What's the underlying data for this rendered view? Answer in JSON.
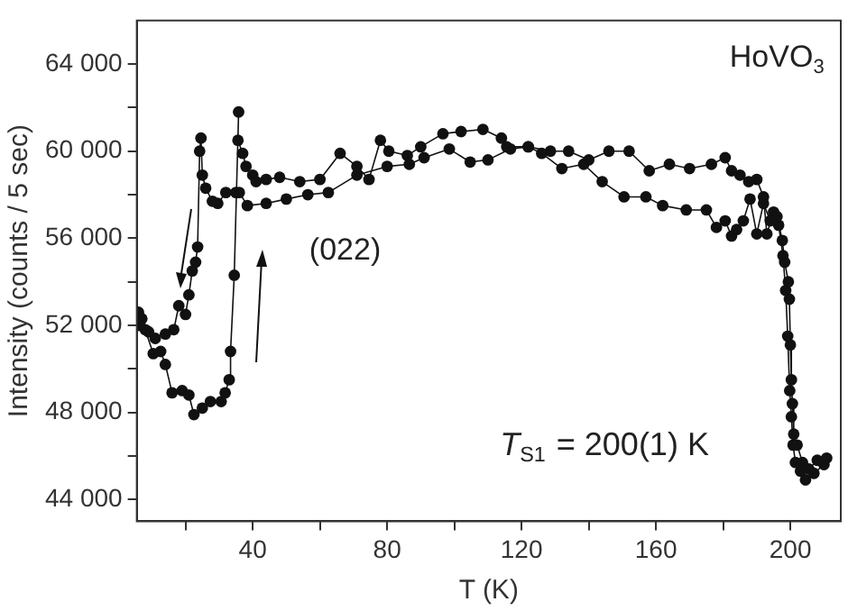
{
  "chart_data": {
    "type": "line",
    "xlabel": "T (K)",
    "ylabel": "Intensity (counts / 5 sec)",
    "annotations": [
      "HoVO$_{3}$",
      "(022)",
      "T$_{S1}$ = 200(1) K"
    ],
    "xlim": [
      5.5,
      215
    ],
    "ylim": [
      43000,
      66000
    ],
    "xticks": [
      {
        "value": 20,
        "label": null
      },
      40,
      {
        "value": 60,
        "label": null
      },
      80,
      {
        "value": 100,
        "label": null
      },
      120,
      {
        "value": 140,
        "label": null
      },
      160,
      {
        "value": 180,
        "label": null
      },
      200
    ],
    "yticks": [
      {
        "value": 44000,
        "label": "44 000"
      },
      {
        "value": 46000,
        "label": null
      },
      {
        "value": 48000,
        "label": "48 000"
      },
      {
        "value": 50000,
        "label": null
      },
      {
        "value": 52000,
        "label": "52 000"
      },
      {
        "value": 54000,
        "label": null
      },
      {
        "value": 56000,
        "label": "56 000"
      },
      {
        "value": 58000,
        "label": null
      },
      {
        "value": 60000,
        "label": "60 000"
      },
      {
        "value": 62000,
        "label": null
      },
      {
        "value": 64000,
        "label": "64 000"
      }
    ],
    "grid": false,
    "legend": false,
    "marker": "circle",
    "line_style": "solid",
    "series": [
      {
        "color": "#111111",
        "x": [
          6,
          8,
          10.4,
          12.6,
          14,
          16,
          19,
          21,
          22.5,
          25,
          27.4,
          30.6,
          31.8,
          33,
          33.4,
          34.5,
          35.8,
          35.6,
          37,
          38,
          40,
          41,
          44,
          48,
          54,
          60,
          66,
          71,
          74.6,
          78,
          80.5,
          86,
          90,
          96.6,
          102,
          108.5,
          114,
          115.6,
          122,
          126,
          132,
          138.5,
          144,
          150.5,
          157,
          162,
          169,
          175,
          178,
          180.6,
          182.5,
          184,
          186,
          188,
          190,
          192,
          194,
          196,
          197.6,
          198.3,
          199.4,
          199.7,
          200,
          200.3,
          200.6,
          201,
          202,
          203.6,
          205.5,
          208,
          210.8
        ],
        "values": [
          52000,
          51800,
          50700,
          50800,
          50200,
          48900,
          49000,
          48800,
          47900,
          48200,
          48500,
          48500,
          48900,
          49500,
          50800,
          54300,
          61800,
          60500,
          59900,
          59300,
          58900,
          58600,
          58700,
          58800,
          58600,
          58700,
          59900,
          59300,
          58700,
          60500,
          60000,
          59800,
          60200,
          60800,
          60900,
          61000,
          60600,
          60200,
          60200,
          59900,
          59200,
          59400,
          58600,
          57900,
          57900,
          57500,
          57300,
          57300,
          56500,
          56800,
          56100,
          56400,
          56800,
          57800,
          56200,
          57600,
          56800,
          57000,
          55900,
          54900,
          54000,
          53200,
          51100,
          49500,
          48400,
          47000,
          46500,
          45700,
          45400,
          45800,
          45900
        ]
      },
      {
        "color": "#111111",
        "x": [
          210,
          207,
          204.5,
          203,
          201.5,
          200.8,
          200.3,
          199.8,
          199.2,
          198.6,
          197.8,
          196.5,
          195,
          193,
          192,
          190,
          187.6,
          185,
          182.5,
          180.6,
          176.5,
          170,
          164,
          158,
          152,
          146,
          140,
          134,
          128.6,
          122,
          116.7,
          110,
          104.7,
          98.5,
          91,
          86.6,
          80,
          71,
          62.5,
          56.4,
          50,
          44,
          38.4,
          36,
          35,
          32,
          29.6,
          28,
          26,
          25,
          24.6,
          24.2,
          23.6,
          23,
          22,
          21,
          20,
          18,
          16.5,
          14,
          11,
          9,
          7,
          6
        ],
        "values": [
          45600,
          45200,
          44900,
          45300,
          45700,
          46500,
          47800,
          49000,
          51500,
          53600,
          55200,
          56600,
          57200,
          56200,
          57900,
          58700,
          58600,
          58900,
          59100,
          59700,
          59400,
          59200,
          59400,
          59100,
          60000,
          60000,
          59600,
          60000,
          60000,
          60200,
          60100,
          59600,
          59500,
          60100,
          59700,
          59400,
          59300,
          58900,
          58100,
          58000,
          57800,
          57600,
          57500,
          58100,
          58100,
          58100,
          57600,
          57700,
          58300,
          58900,
          60600,
          60000,
          55600,
          54900,
          54500,
          53400,
          52500,
          52900,
          51800,
          51600,
          51400,
          51700,
          52300,
          52600
        ]
      }
    ]
  }
}
